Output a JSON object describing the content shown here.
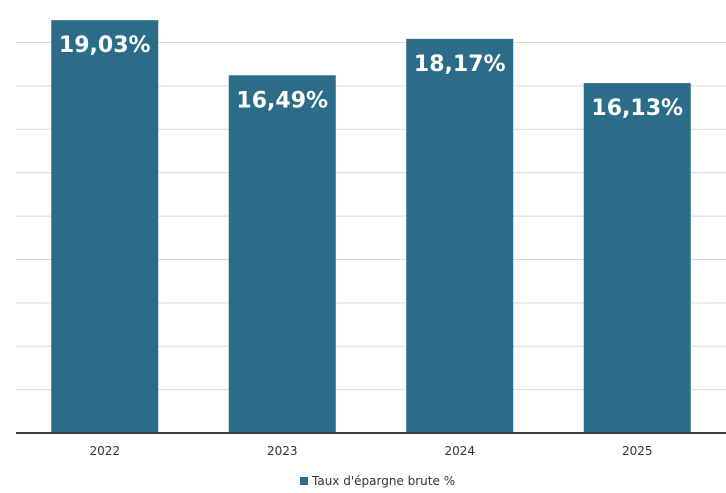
{
  "chart_data": {
    "type": "bar",
    "categories": [
      "2022",
      "2023",
      "2024",
      "2025"
    ],
    "series": [
      {
        "name": "Taux d'épargne brute %",
        "values": [
          19.03,
          16.49,
          18.17,
          16.13
        ],
        "labels": [
          "19,03%",
          "16,49%",
          "18,17%",
          "16,13%"
        ]
      }
    ],
    "ylim": [
      0,
      19.5
    ],
    "grid": true,
    "legend": "bottom",
    "bar_color": "#2b6c88",
    "label_color": "#ffffff"
  }
}
